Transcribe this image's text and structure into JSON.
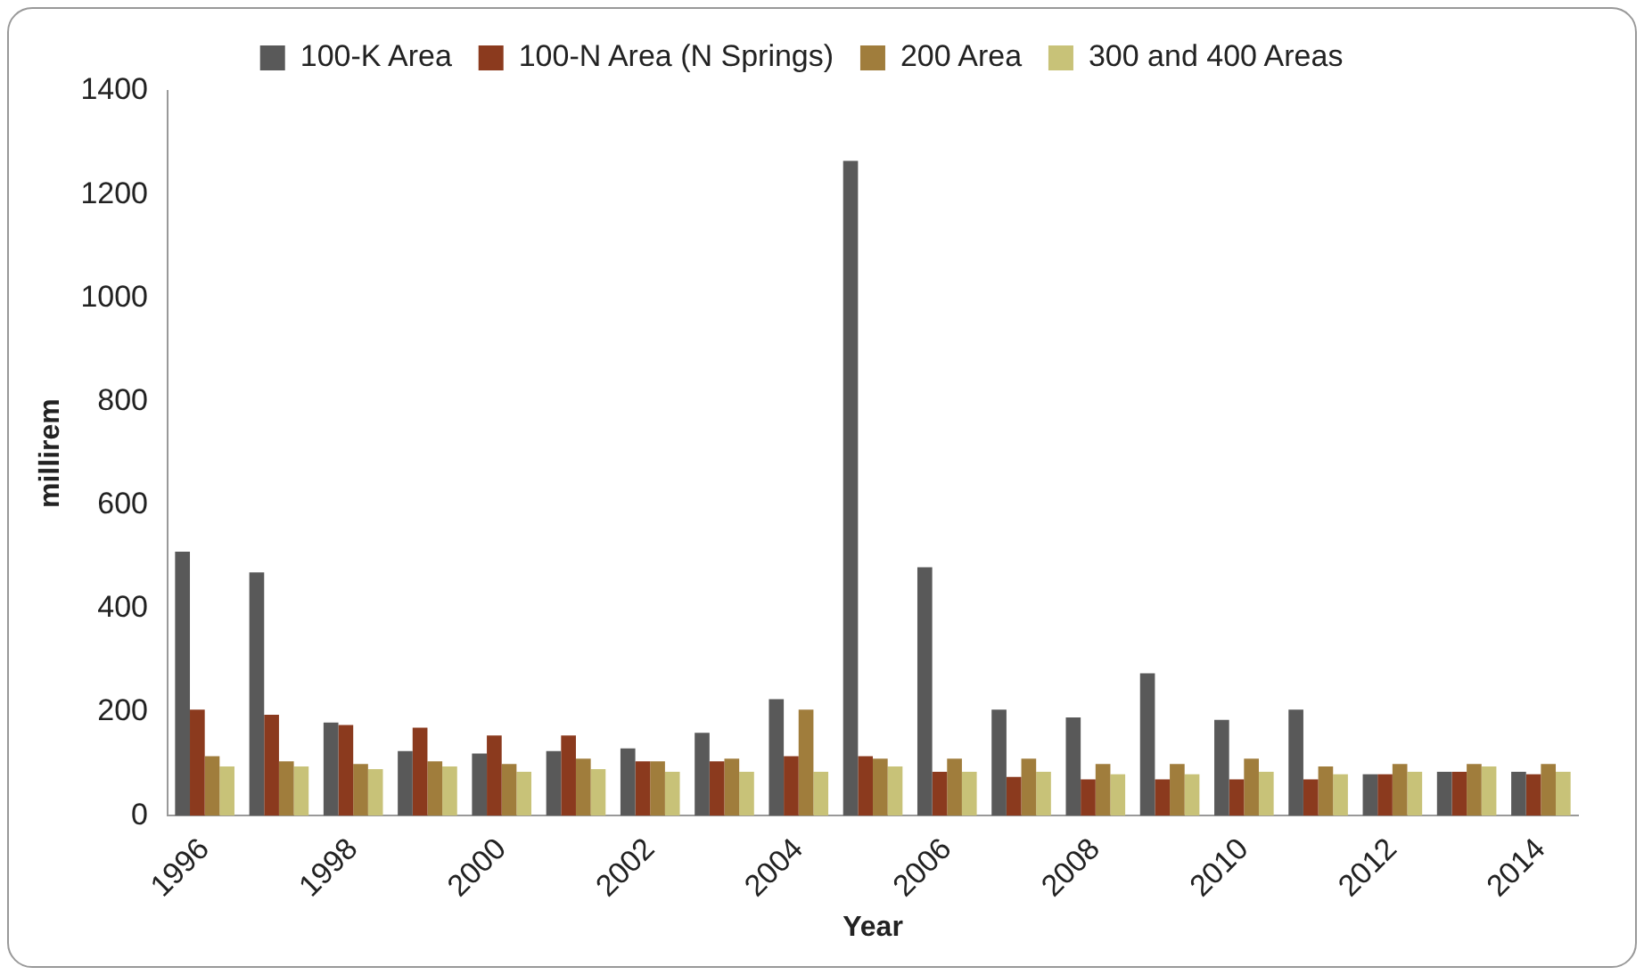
{
  "chart_data": {
    "type": "bar",
    "xlabel": "Year",
    "ylabel": "millirem",
    "categories": [
      "1996",
      null,
      "1998",
      null,
      "2000",
      null,
      "2002",
      null,
      "2004",
      null,
      "2006",
      null,
      "2008",
      null,
      "2010",
      null,
      "2012",
      null,
      "2014"
    ],
    "series": [
      {
        "name": "100-K Area",
        "color": "#595959",
        "values": [
          510,
          470,
          180,
          125,
          120,
          125,
          130,
          160,
          225,
          1265,
          480,
          205,
          190,
          275,
          185,
          205,
          80,
          85,
          85
        ]
      },
      {
        "name": "100-N Area (N Springs)",
        "color": "#8b3a1e",
        "values": [
          205,
          195,
          175,
          170,
          155,
          155,
          105,
          105,
          115,
          115,
          85,
          75,
          70,
          70,
          70,
          70,
          80,
          85,
          80
        ]
      },
      {
        "name": "200 Area",
        "color": "#a07d3c",
        "values": [
          115,
          105,
          100,
          105,
          100,
          110,
          105,
          110,
          205,
          110,
          110,
          110,
          100,
          100,
          110,
          95,
          100,
          100,
          100
        ]
      },
      {
        "name": "300 and 400 Areas",
        "color": "#c8c278",
        "values": [
          95,
          95,
          90,
          95,
          85,
          90,
          85,
          85,
          85,
          95,
          85,
          85,
          80,
          80,
          85,
          80,
          85,
          95,
          85
        ]
      }
    ],
    "ylim": [
      0,
      1400
    ],
    "yticks": [
      0,
      200,
      400,
      600,
      800,
      1000,
      1200,
      1400
    ],
    "grid": false,
    "legend": "top"
  }
}
